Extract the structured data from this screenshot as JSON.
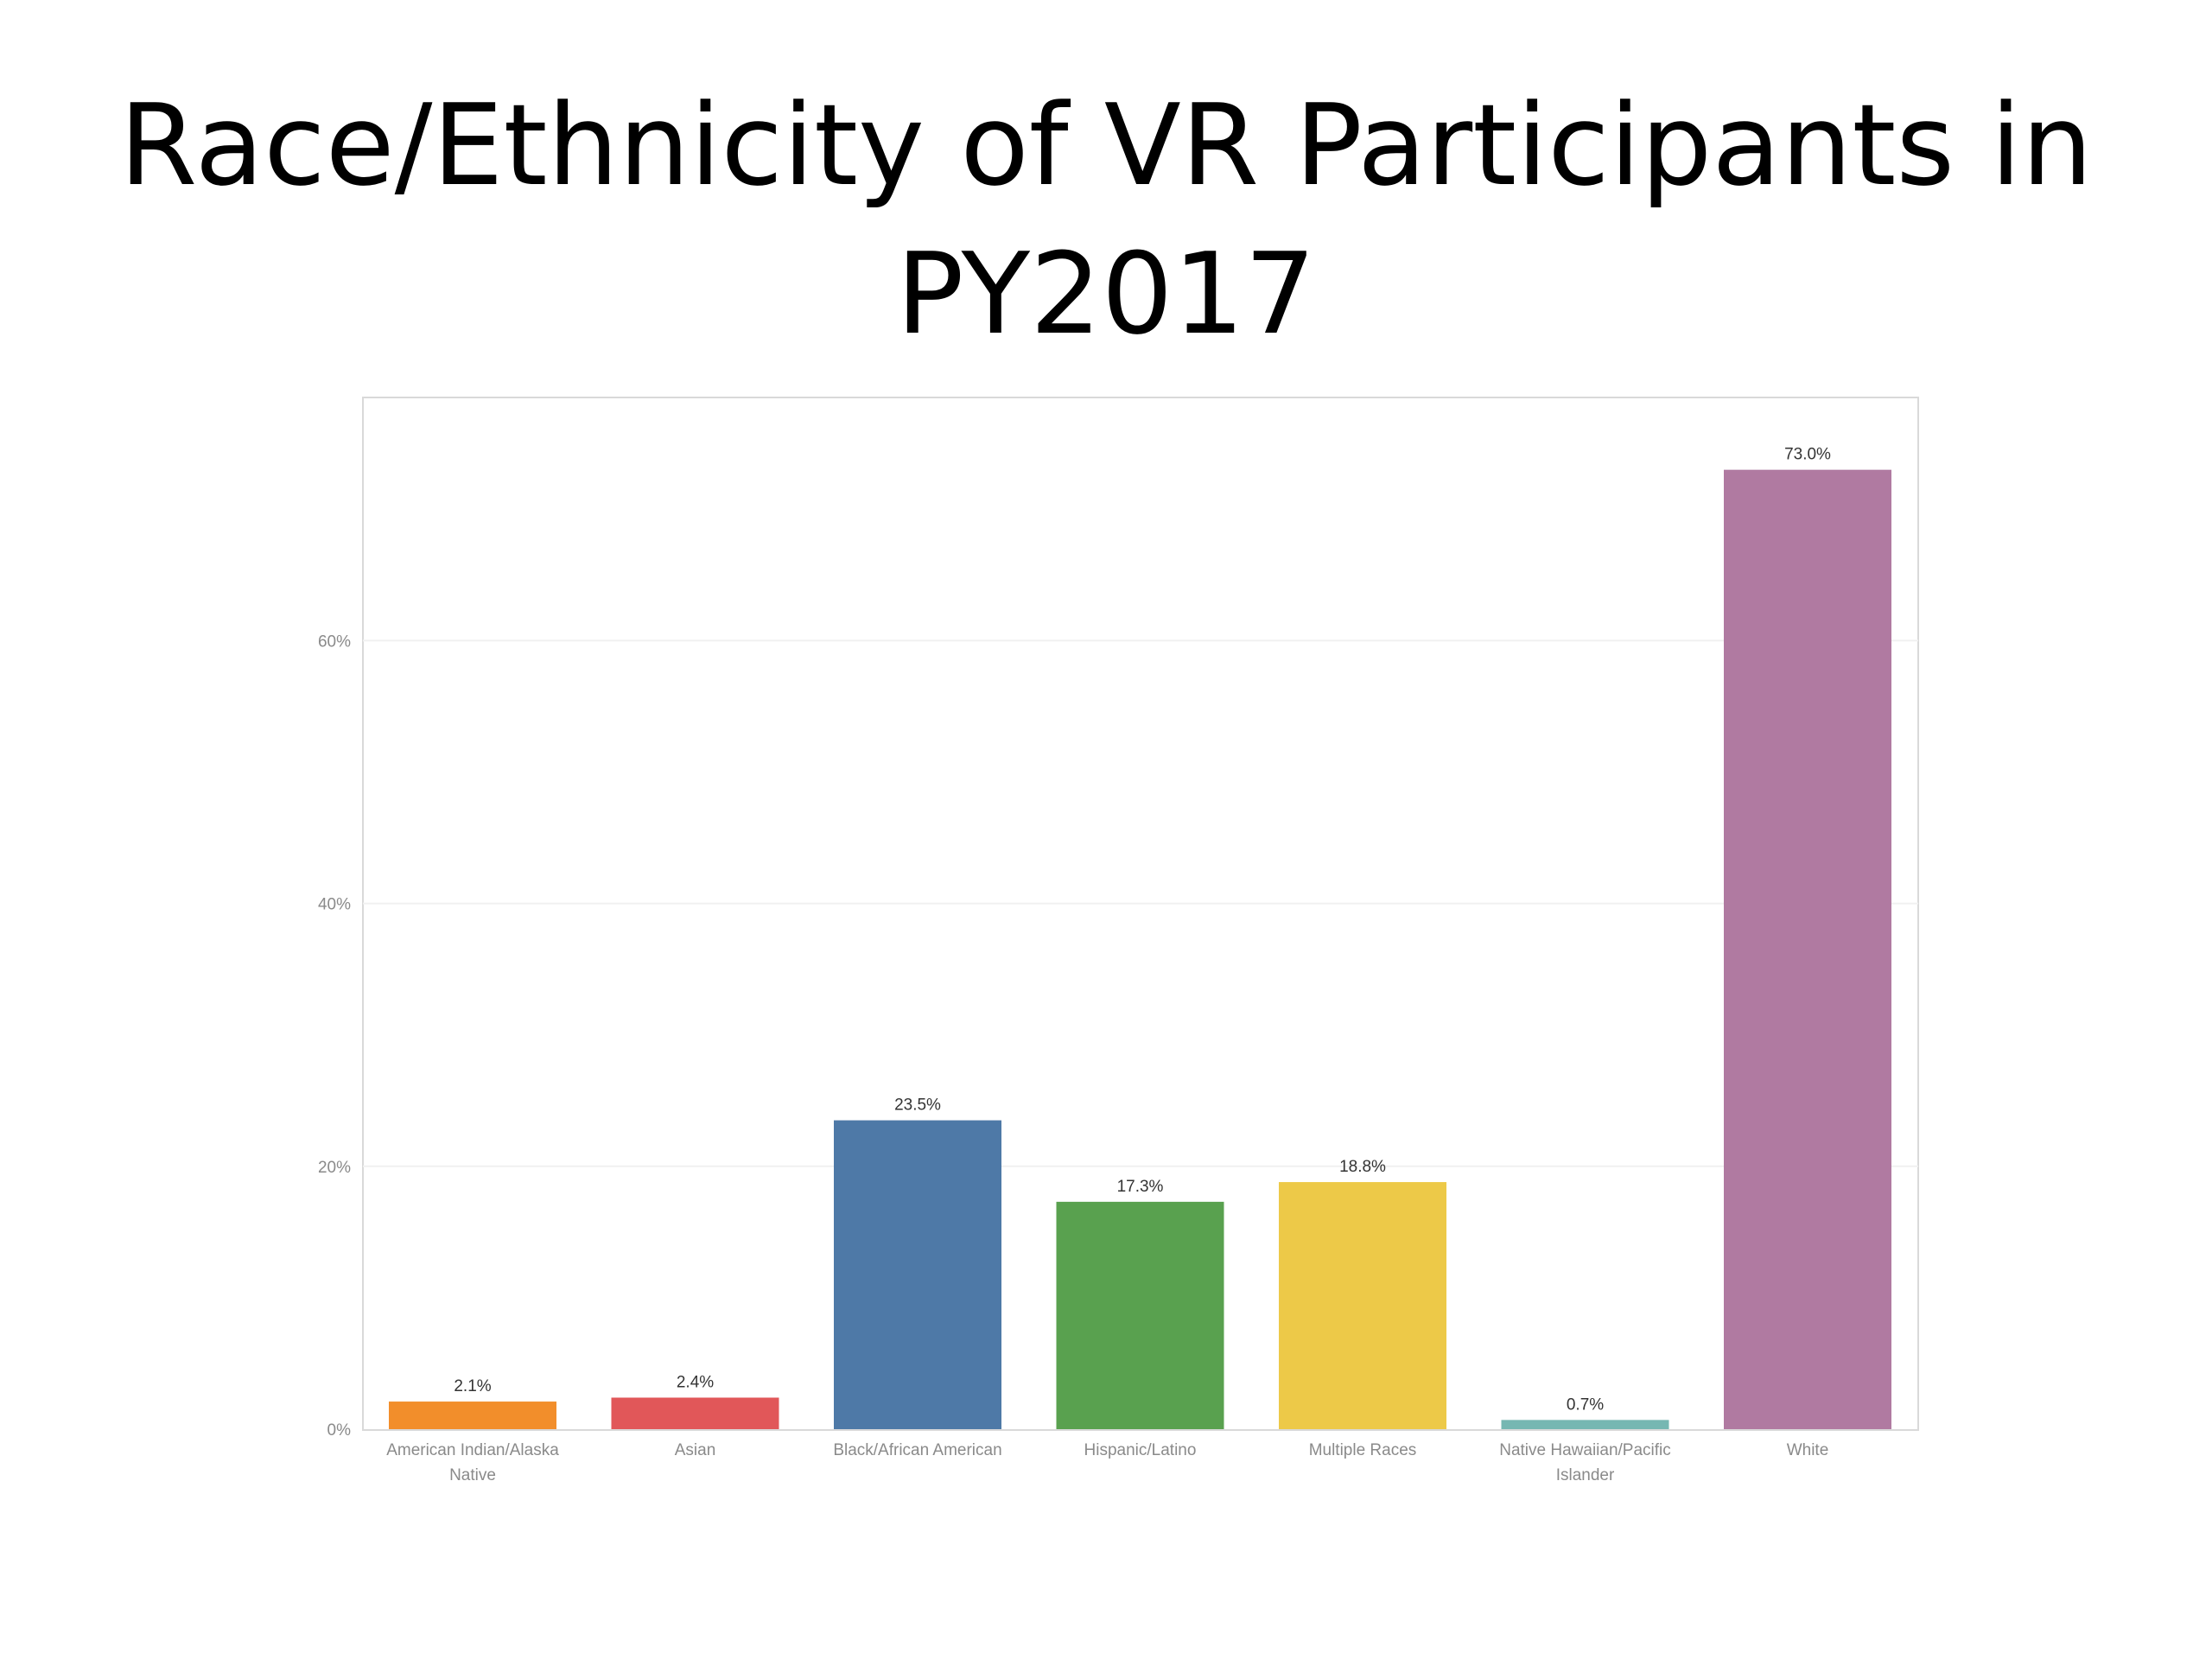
{
  "slide": {
    "title_line1": "Race/Ethnicity of VR Participants in",
    "title_line2": "PY2017"
  },
  "chart_data": {
    "type": "bar",
    "title": "Race/Ethnicity of VR Participants in PY2017",
    "xlabel": "",
    "ylabel": "",
    "ylim": [
      0,
      77
    ],
    "grid": true,
    "legend": "none",
    "yticks": [
      0,
      20,
      40,
      60
    ],
    "ytick_labels": [
      "0%",
      "20%",
      "40%",
      "60%"
    ],
    "categories": [
      [
        "American Indian/Alaska",
        "Native"
      ],
      [
        "Asian"
      ],
      [
        "Black/African American"
      ],
      [
        "Hispanic/Latino"
      ],
      [
        "Multiple Races"
      ],
      [
        "Native Hawaiian/Pacific",
        "Islander"
      ],
      [
        "White"
      ]
    ],
    "values": [
      2.1,
      2.4,
      23.5,
      17.3,
      18.8,
      0.7,
      73.0
    ],
    "data_labels": [
      "2.1%",
      "2.4%",
      "23.5%",
      "17.3%",
      "18.8%",
      "0.7%",
      "73.0%"
    ],
    "colors": [
      "#f28e2b",
      "#e15759",
      "#4e79a7",
      "#59a14f",
      "#edc948",
      "#76b7b2",
      "#b07aa1"
    ]
  }
}
